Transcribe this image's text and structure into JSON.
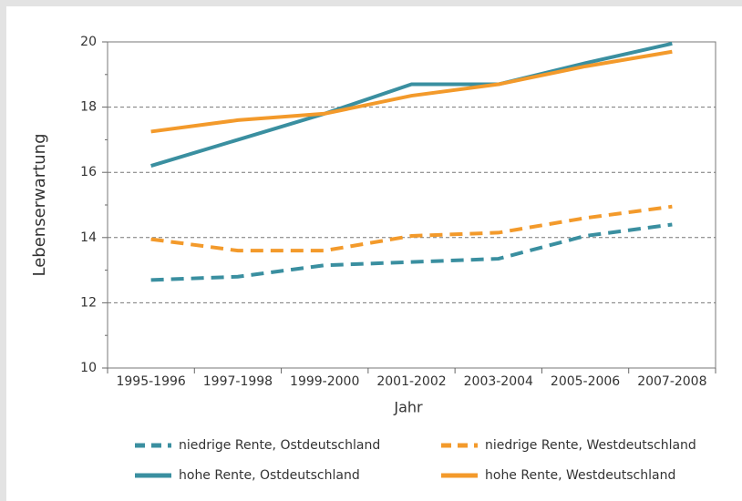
{
  "chart_data": {
    "type": "line",
    "xlabel": "Jahr",
    "ylabel": "Lebenserwartung",
    "categories": [
      "1995-1996",
      "1997-1998",
      "1999-2000",
      "2001-2002",
      "2003-2004",
      "2005-2006",
      "2007-2008"
    ],
    "series": [
      {
        "name": "niedrige Rente, Ostdeutschland",
        "color": "#3a8fa0",
        "style": "dashed",
        "values": [
          12.7,
          12.8,
          13.15,
          13.25,
          13.35,
          14.05,
          14.4
        ]
      },
      {
        "name": "niedrige Rente, Westdeutschland",
        "color": "#f39a2b",
        "style": "dashed",
        "values": [
          13.95,
          13.6,
          13.6,
          14.05,
          14.15,
          14.6,
          14.95
        ]
      },
      {
        "name": "hohe Rente, Ostdeutschland",
        "color": "#3a8fa0",
        "style": "solid",
        "values": [
          16.2,
          17.0,
          17.8,
          18.7,
          18.7,
          19.35,
          19.95
        ]
      },
      {
        "name": "hohe Rente, Westdeutschland",
        "color": "#f39a2b",
        "style": "solid",
        "values": [
          17.25,
          17.6,
          17.8,
          18.35,
          18.7,
          19.25,
          19.7
        ]
      }
    ],
    "ylim": [
      10,
      20
    ],
    "yticks": [
      10,
      12,
      14,
      16,
      18,
      20
    ],
    "grid": true
  }
}
